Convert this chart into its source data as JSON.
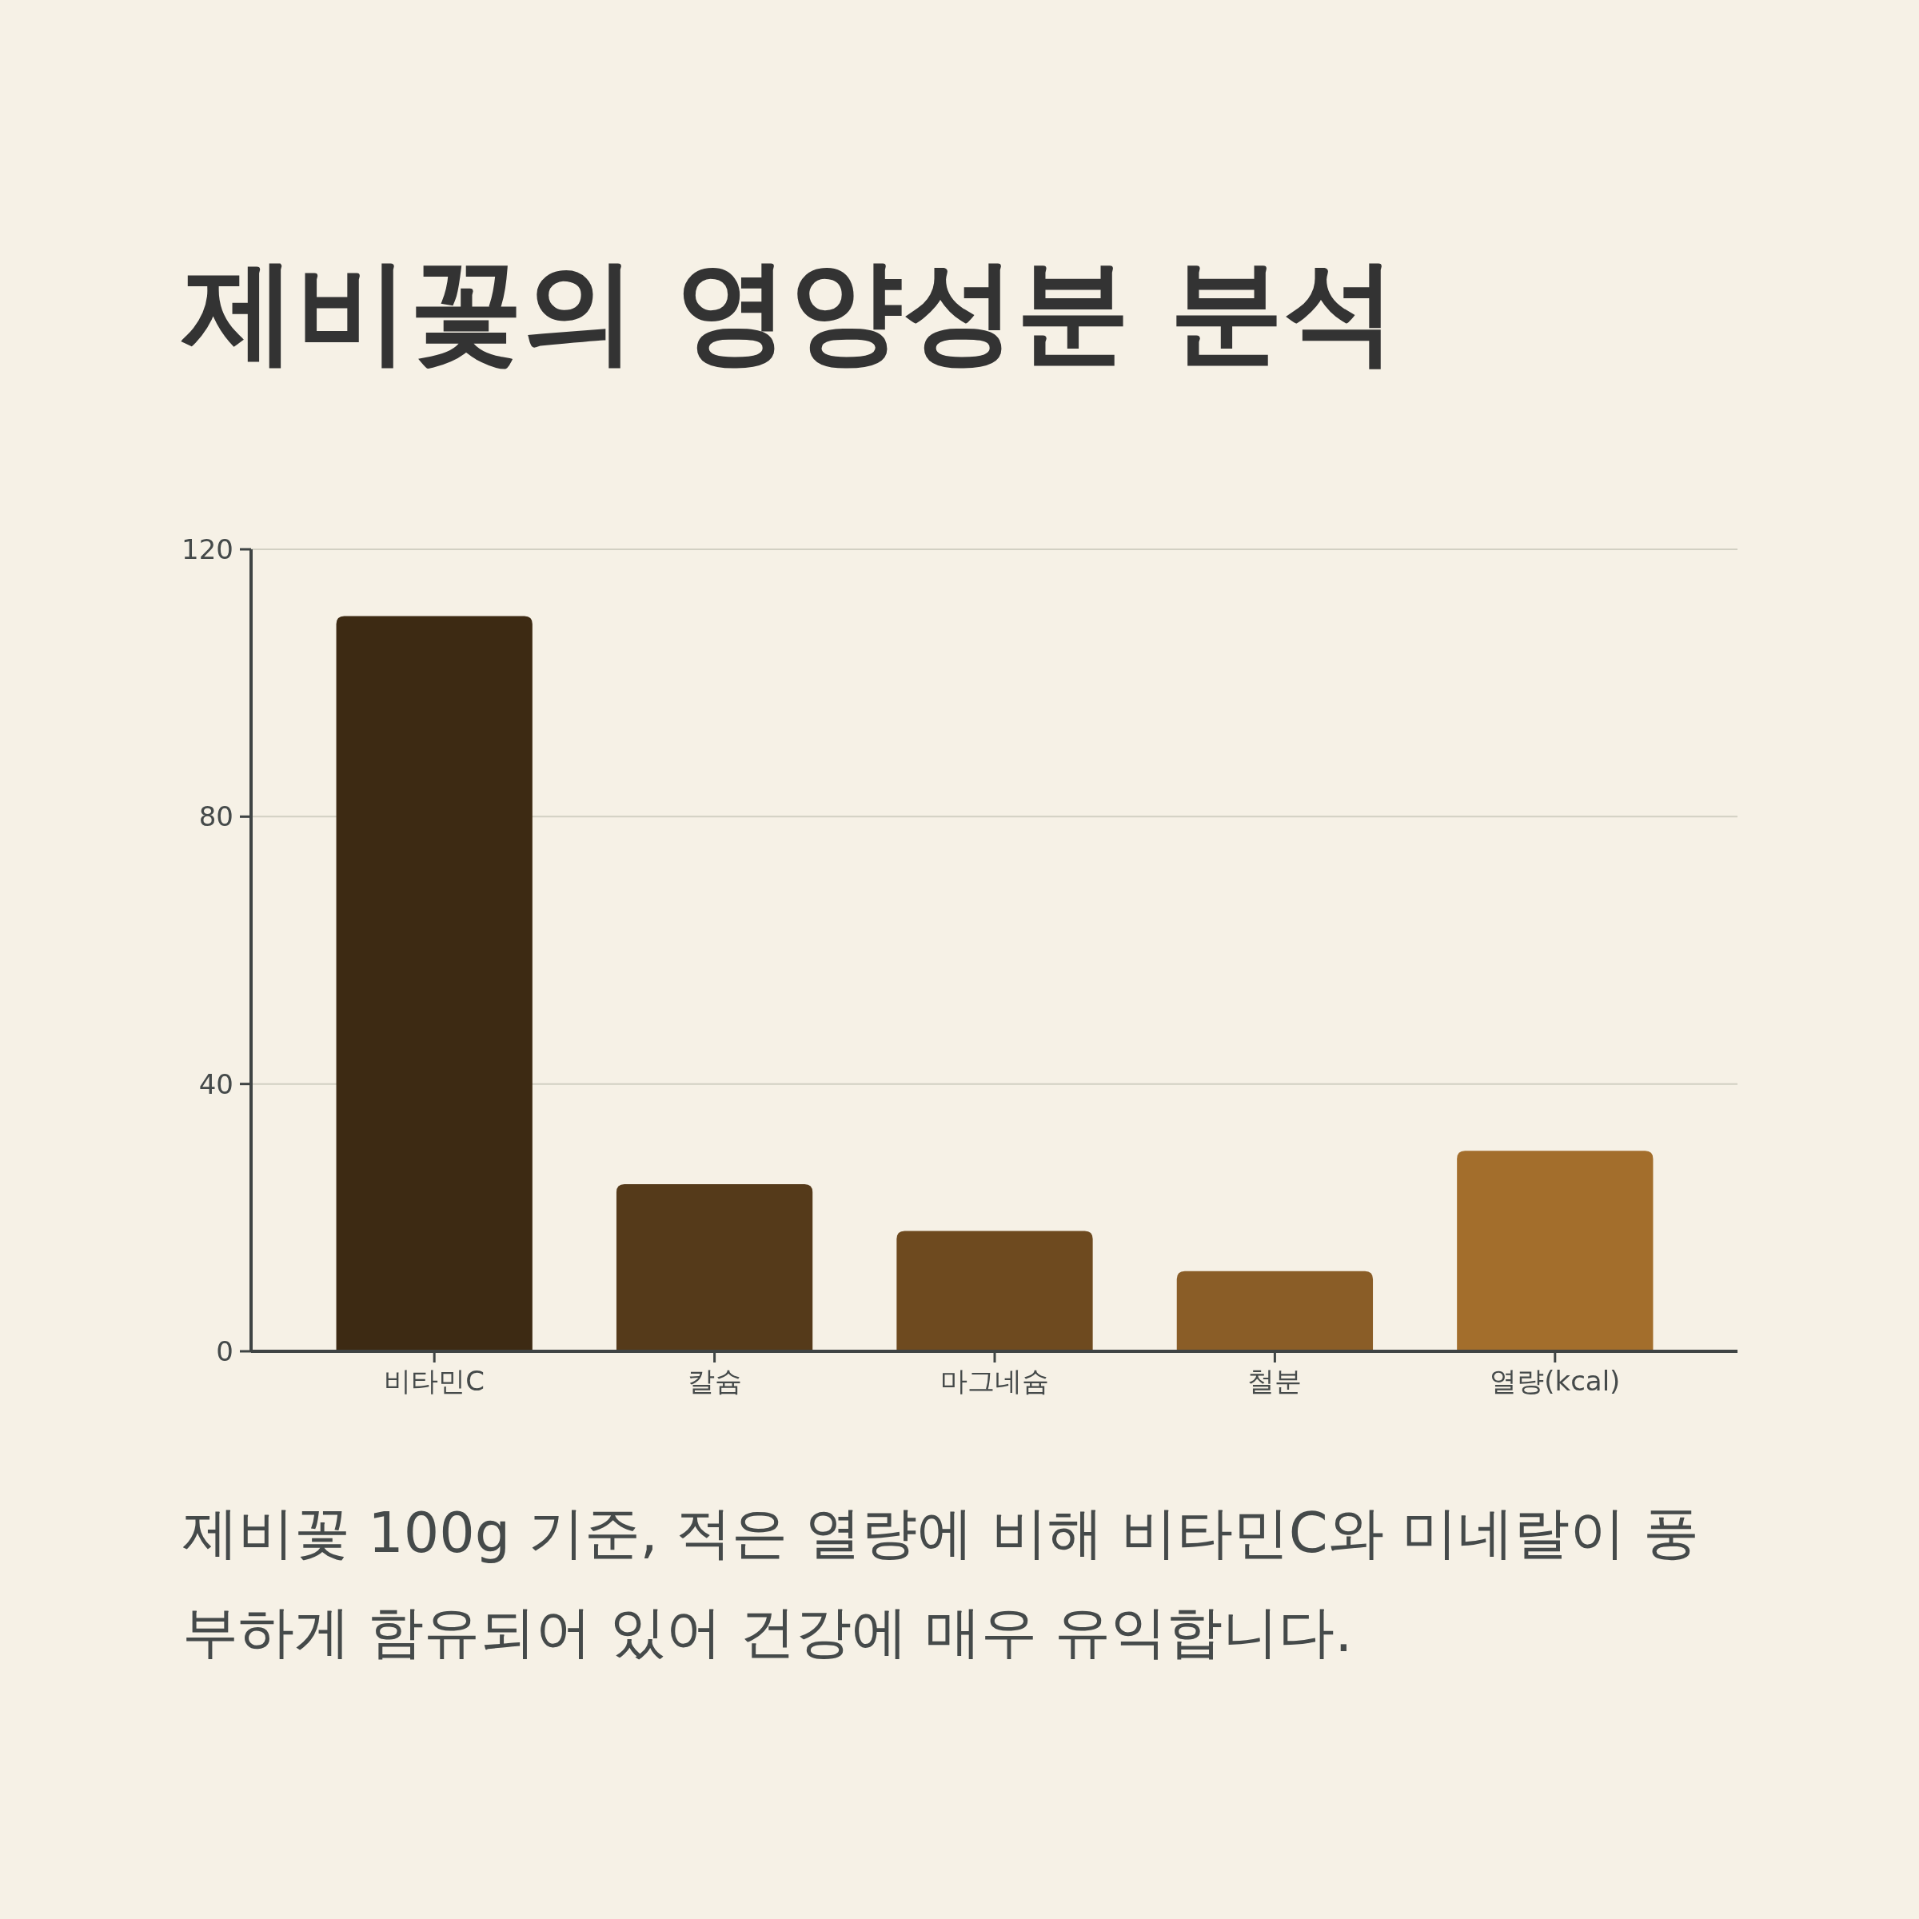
{
  "chart_data": {
    "type": "bar",
    "title": "제비꽃의 영양성분 분석",
    "categories": [
      "비타민C",
      "칼슘",
      "마그네슘",
      "철분",
      "열량(kcal)"
    ],
    "values": [
      110,
      25,
      18,
      12,
      30
    ],
    "colors": [
      "#3d2a13",
      "#553a1a",
      "#6e4a1f",
      "#8a5d27",
      "#a36e2c"
    ],
    "ylim": [
      0,
      120
    ],
    "yticks": [
      0,
      40,
      80,
      120
    ],
    "grid": "y",
    "annotations": [
      "제비꽃 100g 기준, 적은 열량에 비해 비타민C와 미네랄이 풍부하게 함유되어 있어 건강에 매우 유익합니다."
    ]
  }
}
